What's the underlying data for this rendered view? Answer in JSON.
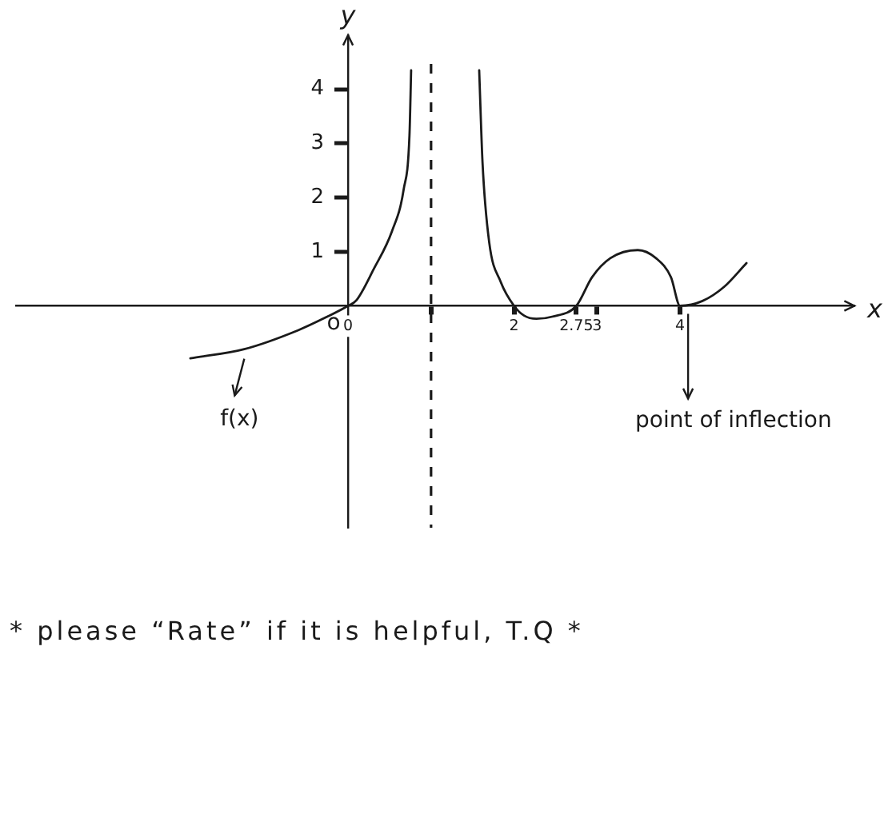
{
  "chart_data": {
    "type": "line",
    "xlabel": "x",
    "ylabel": "y",
    "series": [
      {
        "color": "#1a1a1a",
        "x": [
          -1.9,
          -1.25,
          -0.6,
          -0.25,
          0,
          0.1,
          0.31,
          0.53,
          0.67,
          0.74,
          0.76
        ],
        "values": [
          -0.97,
          -0.8,
          -0.45,
          -0.2,
          0,
          0.1,
          0.68,
          1.38,
          2.15,
          3.15,
          4.35
        ]
      },
      {
        "color": "#1a1a1a",
        "x": [
          1.58,
          1.62,
          1.7,
          1.84,
          2,
          2.12,
          2.27,
          2.46,
          2.75,
          2.94,
          3.16,
          3.49,
          3.71,
          3.89,
          4,
          4.27,
          4.53,
          4.8
        ],
        "values": [
          4.35,
          2.65,
          1.18,
          0.44,
          0,
          -0.18,
          -0.24,
          -0.2,
          0,
          0.53,
          0.88,
          1.03,
          0.88,
          0.53,
          0,
          0.09,
          0.35,
          0.79
        ]
      }
    ],
    "xlim": [
      -4,
      6.1
    ],
    "ylim": [
      -4.1,
      5
    ],
    "xticks": [
      0,
      {
        "value": 1,
        "label": null
      },
      2,
      2.75,
      3,
      4
    ],
    "yticks": [
      1,
      2,
      3,
      4
    ],
    "ref_lines": [
      {
        "axis": "x",
        "value": 1,
        "line_style": "dashed"
      }
    ],
    "annotations": [
      {
        "text": "o",
        "x": 0,
        "y": 0
      },
      {
        "text": "f(x)",
        "x": -1.25,
        "y": -0.8
      },
      {
        "text": "point of inflection",
        "x": 4,
        "y": 0
      },
      "* please “Rate” if it is helpful, T.Q *"
    ],
    "grid": false,
    "legend": false,
    "marker": "none"
  }
}
